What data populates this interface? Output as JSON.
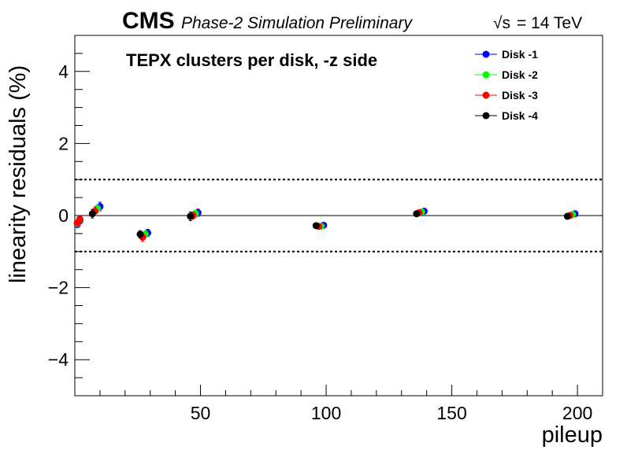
{
  "header": {
    "cms": "CMS",
    "preliminary": "Phase-2 Simulation Preliminary",
    "sqrt_symbol": "√s",
    "energy": "= 14 TeV"
  },
  "chart_data": {
    "type": "scatter",
    "title": "",
    "annotation": "TEPX clusters per disk, -z side",
    "xlabel": "pileup",
    "ylabel": "linearity residuals (%)",
    "xlim": [
      0,
      210
    ],
    "ylim": [
      -5,
      5
    ],
    "x_ticks": [
      50,
      100,
      150,
      200
    ],
    "y_ticks": [
      -4,
      -2,
      0,
      2,
      4
    ],
    "reference_lines": {
      "solid": 0,
      "dashed": [
        -1,
        1
      ]
    },
    "legend_position": "top-right",
    "series": [
      {
        "name": "Disk -1",
        "color": "#0000ff",
        "x": [
          1,
          2,
          10,
          29,
          49,
          99,
          139,
          199
        ],
        "y": [
          -0.25,
          -0.15,
          0.25,
          -0.48,
          0.08,
          -0.27,
          0.12,
          0.05
        ],
        "err": [
          0.08,
          0.08,
          0.12,
          0.1,
          0.1,
          0.06,
          0.05,
          0.05
        ]
      },
      {
        "name": "Disk -2",
        "color": "#00ff00",
        "x": [
          1,
          2,
          9,
          28,
          48,
          98,
          138,
          198
        ],
        "y": [
          -0.22,
          -0.12,
          0.2,
          -0.52,
          0.05,
          -0.3,
          0.1,
          0.03
        ],
        "err": [
          0.08,
          0.08,
          0.12,
          0.1,
          0.1,
          0.06,
          0.05,
          0.05
        ]
      },
      {
        "name": "Disk -3",
        "color": "#ff0000",
        "x": [
          1,
          2,
          8,
          27,
          47,
          97,
          137,
          197
        ],
        "y": [
          -0.2,
          -0.1,
          0.12,
          -0.6,
          0.0,
          -0.3,
          0.08,
          0.0
        ],
        "err": [
          0.08,
          0.08,
          0.12,
          0.12,
          0.1,
          0.06,
          0.05,
          0.05
        ]
      },
      {
        "name": "Disk -4",
        "color": "#000000",
        "x": [
          7,
          26,
          46,
          96,
          136,
          196
        ],
        "y": [
          0.05,
          -0.52,
          -0.02,
          -0.28,
          0.05,
          -0.02
        ],
        "err": [
          0.12,
          0.1,
          0.12,
          0.06,
          0.04,
          0.05
        ]
      }
    ]
  }
}
